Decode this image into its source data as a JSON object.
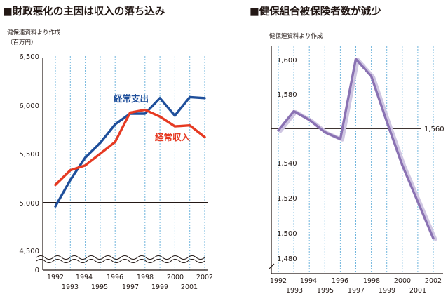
{
  "chart_data": [
    {
      "type": "line",
      "title": "■財政悪化の主因は収入の落ち込み",
      "source": "健保連資料より作成",
      "unit": "（百万円）",
      "categories": [
        "1992",
        "1993",
        "1994",
        "1995",
        "1996",
        "1997",
        "1998",
        "1999",
        "2000",
        "2001",
        "2002"
      ],
      "x_labels_top": [
        "1992",
        "1994",
        "1996",
        "1998",
        "2000",
        "2002"
      ],
      "x_labels_bottom": [
        "1993",
        "1995",
        "1997",
        "1999",
        "2001"
      ],
      "y_ticks": [
        "6,500",
        "6,000",
        "5,500",
        "5,000",
        "4,500",
        "0"
      ],
      "ylim": [
        4500,
        6500
      ],
      "axis_break": true,
      "reference_line": 5000,
      "grid": "vertical-dotted",
      "series": [
        {
          "name": "経常支出",
          "color": "#1f4f9b",
          "values": [
            4960,
            5230,
            5460,
            5610,
            5800,
            5910,
            5910,
            6070,
            5890,
            6080,
            6070
          ]
        },
        {
          "name": "経常収入",
          "color": "#e63a22",
          "values": [
            5180,
            5330,
            5380,
            5500,
            5620,
            5920,
            5950,
            5880,
            5780,
            5790,
            5670
          ]
        }
      ]
    },
    {
      "type": "line",
      "title": "■健保組合被保険者数が減少",
      "source": "健保連資料より作成",
      "categories": [
        "1992",
        "1993",
        "1994",
        "1995",
        "1996",
        "1997",
        "1998",
        "1999",
        "2000",
        "2001",
        "2002"
      ],
      "x_labels_top": [
        "1992",
        "1994",
        "1996",
        "1998",
        "2000",
        "2002"
      ],
      "x_labels_bottom": [
        "1993",
        "1995",
        "1997",
        "1999",
        "2001"
      ],
      "y_ticks": [
        "1,600",
        "1,580",
        "1,560",
        "1,540",
        "1,520",
        "1,500",
        "1,480"
      ],
      "ylim": [
        1480,
        1600
      ],
      "reference_line": 1560,
      "reference_label": "1,560",
      "grid": "vertical-dotted",
      "series": [
        {
          "color": "#8a72b3",
          "values": [
            1559,
            1570,
            1565,
            1558,
            1554,
            1600,
            1590,
            1564,
            1539,
            1518,
            1497
          ]
        }
      ]
    }
  ]
}
